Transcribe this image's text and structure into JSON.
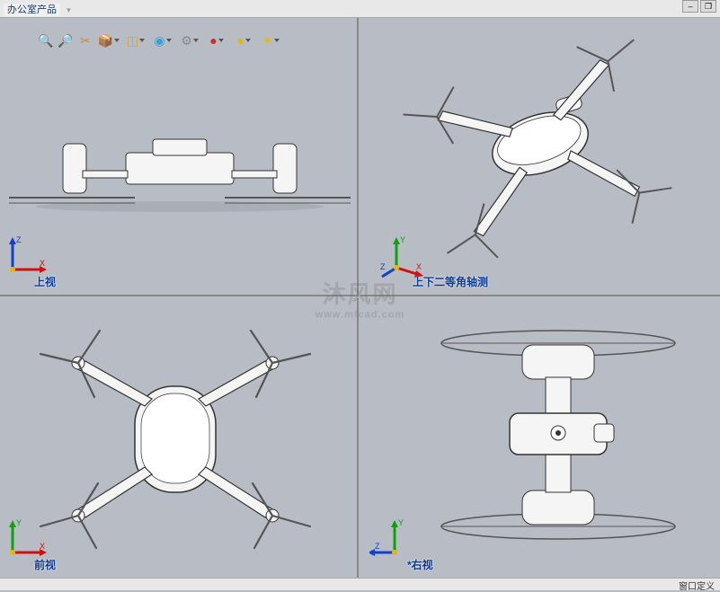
{
  "menubar": {
    "office_products": "办公室产品"
  },
  "toolbar": {
    "icons": [
      {
        "name": "zoom-fit-icon",
        "glyph": "🔍",
        "color": "#2a6fd6"
      },
      {
        "name": "zoom-area-icon",
        "glyph": "🔎",
        "color": "#2a6fd6"
      },
      {
        "name": "section-icon",
        "glyph": "✂",
        "color": "#d68a2a"
      },
      {
        "name": "view-orient-icon",
        "glyph": "📦",
        "color": "#d6a82a"
      },
      {
        "name": "display-style-icon",
        "glyph": "◫",
        "color": "#d6a82a"
      },
      {
        "name": "hide-show-icon",
        "glyph": "◉",
        "color": "#3aa0d6"
      },
      {
        "name": "edit-scene-icon",
        "glyph": "⚙",
        "color": "#888888"
      },
      {
        "name": "appearance-icon",
        "glyph": "●",
        "color": "#d62a2a"
      },
      {
        "name": "render-icon",
        "glyph": "●",
        "color": "#e6b800"
      },
      {
        "name": "photoview-icon",
        "glyph": "☀",
        "color": "#e6b800"
      }
    ]
  },
  "views": {
    "top_left": {
      "label": "上视",
      "triad_axes": [
        "Z",
        "X"
      ],
      "triad_colors": [
        "#1040d0",
        "#d01010"
      ]
    },
    "top_right": {
      "label": "上下二等角轴测",
      "triad_axes": [
        "Y",
        "X",
        "Z"
      ],
      "triad_colors": [
        "#10a010",
        "#d01010",
        "#1040d0"
      ]
    },
    "bot_left": {
      "label": "前视",
      "triad_axes": [
        "Y",
        "X"
      ],
      "triad_colors": [
        "#10a010",
        "#d01010"
      ]
    },
    "bot_right": {
      "label": "*右视",
      "triad_axes": [
        "Y",
        "Z"
      ],
      "triad_colors": [
        "#10a010",
        "#1040d0"
      ]
    }
  },
  "watermark": {
    "main": "沐风网",
    "sub": "www.mfcad.com"
  },
  "status": {
    "text": "窗口定义"
  },
  "drone_style": {
    "body_fill": "#f5f5f5",
    "body_stroke": "#333",
    "shadow": "#9a9ea6",
    "prop_stroke": "#555"
  }
}
